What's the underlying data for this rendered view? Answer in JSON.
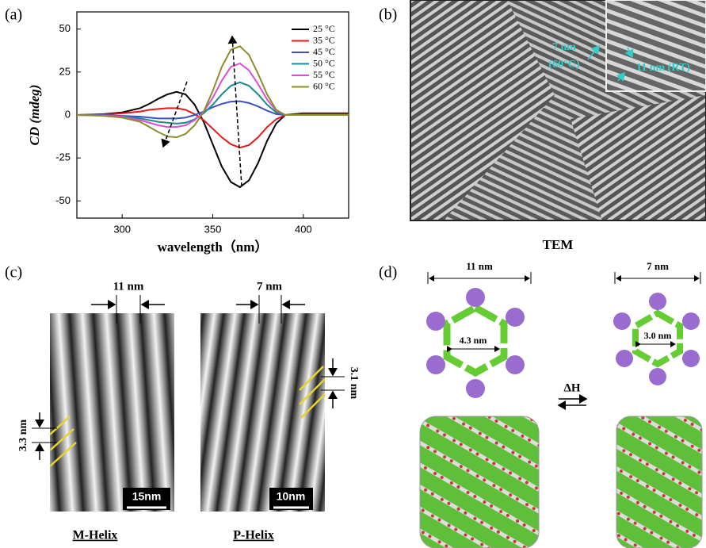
{
  "chart_data": {
    "type": "line",
    "panel_label": "(a)",
    "xlabel": "wavelength（nm）",
    "ylabel": "CD (mdeg)",
    "x": [
      275,
      290,
      300,
      310,
      315,
      320,
      325,
      330,
      335,
      340,
      345,
      350,
      355,
      360,
      365,
      370,
      375,
      380,
      385,
      390,
      400,
      425
    ],
    "xlim": [
      275,
      425
    ],
    "ylim": [
      -60,
      60
    ],
    "xticks": [
      300,
      350,
      400
    ],
    "yticks": [
      -50,
      -25,
      0,
      25,
      50
    ],
    "legend": "upper right",
    "series": [
      {
        "name": "25 °C",
        "color": "#000000",
        "values": [
          0,
          0.5,
          1.5,
          4,
          6.5,
          9.5,
          12,
          13.5,
          12,
          6,
          -4,
          -17,
          -30,
          -39,
          -42,
          -38,
          -28,
          -15,
          -5,
          0,
          1,
          1
        ]
      },
      {
        "name": "35 °C",
        "color": "#e8191c",
        "values": [
          0,
          0.3,
          1,
          2,
          3,
          3.5,
          4,
          4,
          3,
          0.5,
          -3,
          -8,
          -13,
          -17,
          -19,
          -17.5,
          -13,
          -7,
          -2.5,
          0,
          0.5,
          0.5
        ]
      },
      {
        "name": "45 °C",
        "color": "#3d4fc4",
        "values": [
          0,
          0,
          -0.5,
          -1,
          -1.5,
          -2,
          -2,
          -2,
          -1.5,
          0,
          2,
          4.5,
          6.5,
          7.8,
          8,
          7,
          5,
          2.5,
          0.5,
          0,
          0,
          0
        ]
      },
      {
        "name": "50 °C",
        "color": "#1a8c8c",
        "values": [
          0,
          -0.2,
          -0.8,
          -2,
          -3,
          -4,
          -4.5,
          -5,
          -4.5,
          -2.5,
          1,
          6,
          12,
          17,
          19,
          17,
          12,
          6,
          1.5,
          0,
          0,
          0
        ]
      },
      {
        "name": "55 °C",
        "color": "#d94fd9",
        "values": [
          0,
          -0.3,
          -1,
          -3,
          -4.5,
          -6,
          -7,
          -7,
          -6,
          -3,
          2,
          10,
          20,
          28,
          30,
          26,
          18,
          9,
          2.5,
          0,
          0,
          0
        ]
      },
      {
        "name": "60 °C",
        "color": "#8c8c2a",
        "values": [
          0,
          -0.5,
          -1.5,
          -4,
          -7,
          -10,
          -12.5,
          -13,
          -11,
          -6,
          2,
          14,
          28,
          38,
          40,
          35,
          24,
          12,
          3,
          0,
          0,
          0
        ]
      }
    ]
  },
  "panel_b": {
    "label": "(b)",
    "caption": "TEM",
    "annotations": [
      "7 nm",
      "(60°C)",
      "11 nm (RT)"
    ]
  },
  "panel_c": {
    "label": "(c)",
    "left": {
      "width": "11 nm",
      "pitch": "3.3 nm",
      "scale_bar": "15nm",
      "caption": "M-Helix"
    },
    "right": {
      "width": "7 nm",
      "pitch": "3.1 nm",
      "scale_bar": "10nm",
      "caption": "P-Helix"
    }
  },
  "panel_d": {
    "label": "(d)",
    "transition": "ΔH",
    "left": {
      "diameter": "11 nm",
      "inner": "4.3 nm"
    },
    "right": {
      "diameter": "7 nm",
      "inner": "3.0 nm"
    }
  }
}
